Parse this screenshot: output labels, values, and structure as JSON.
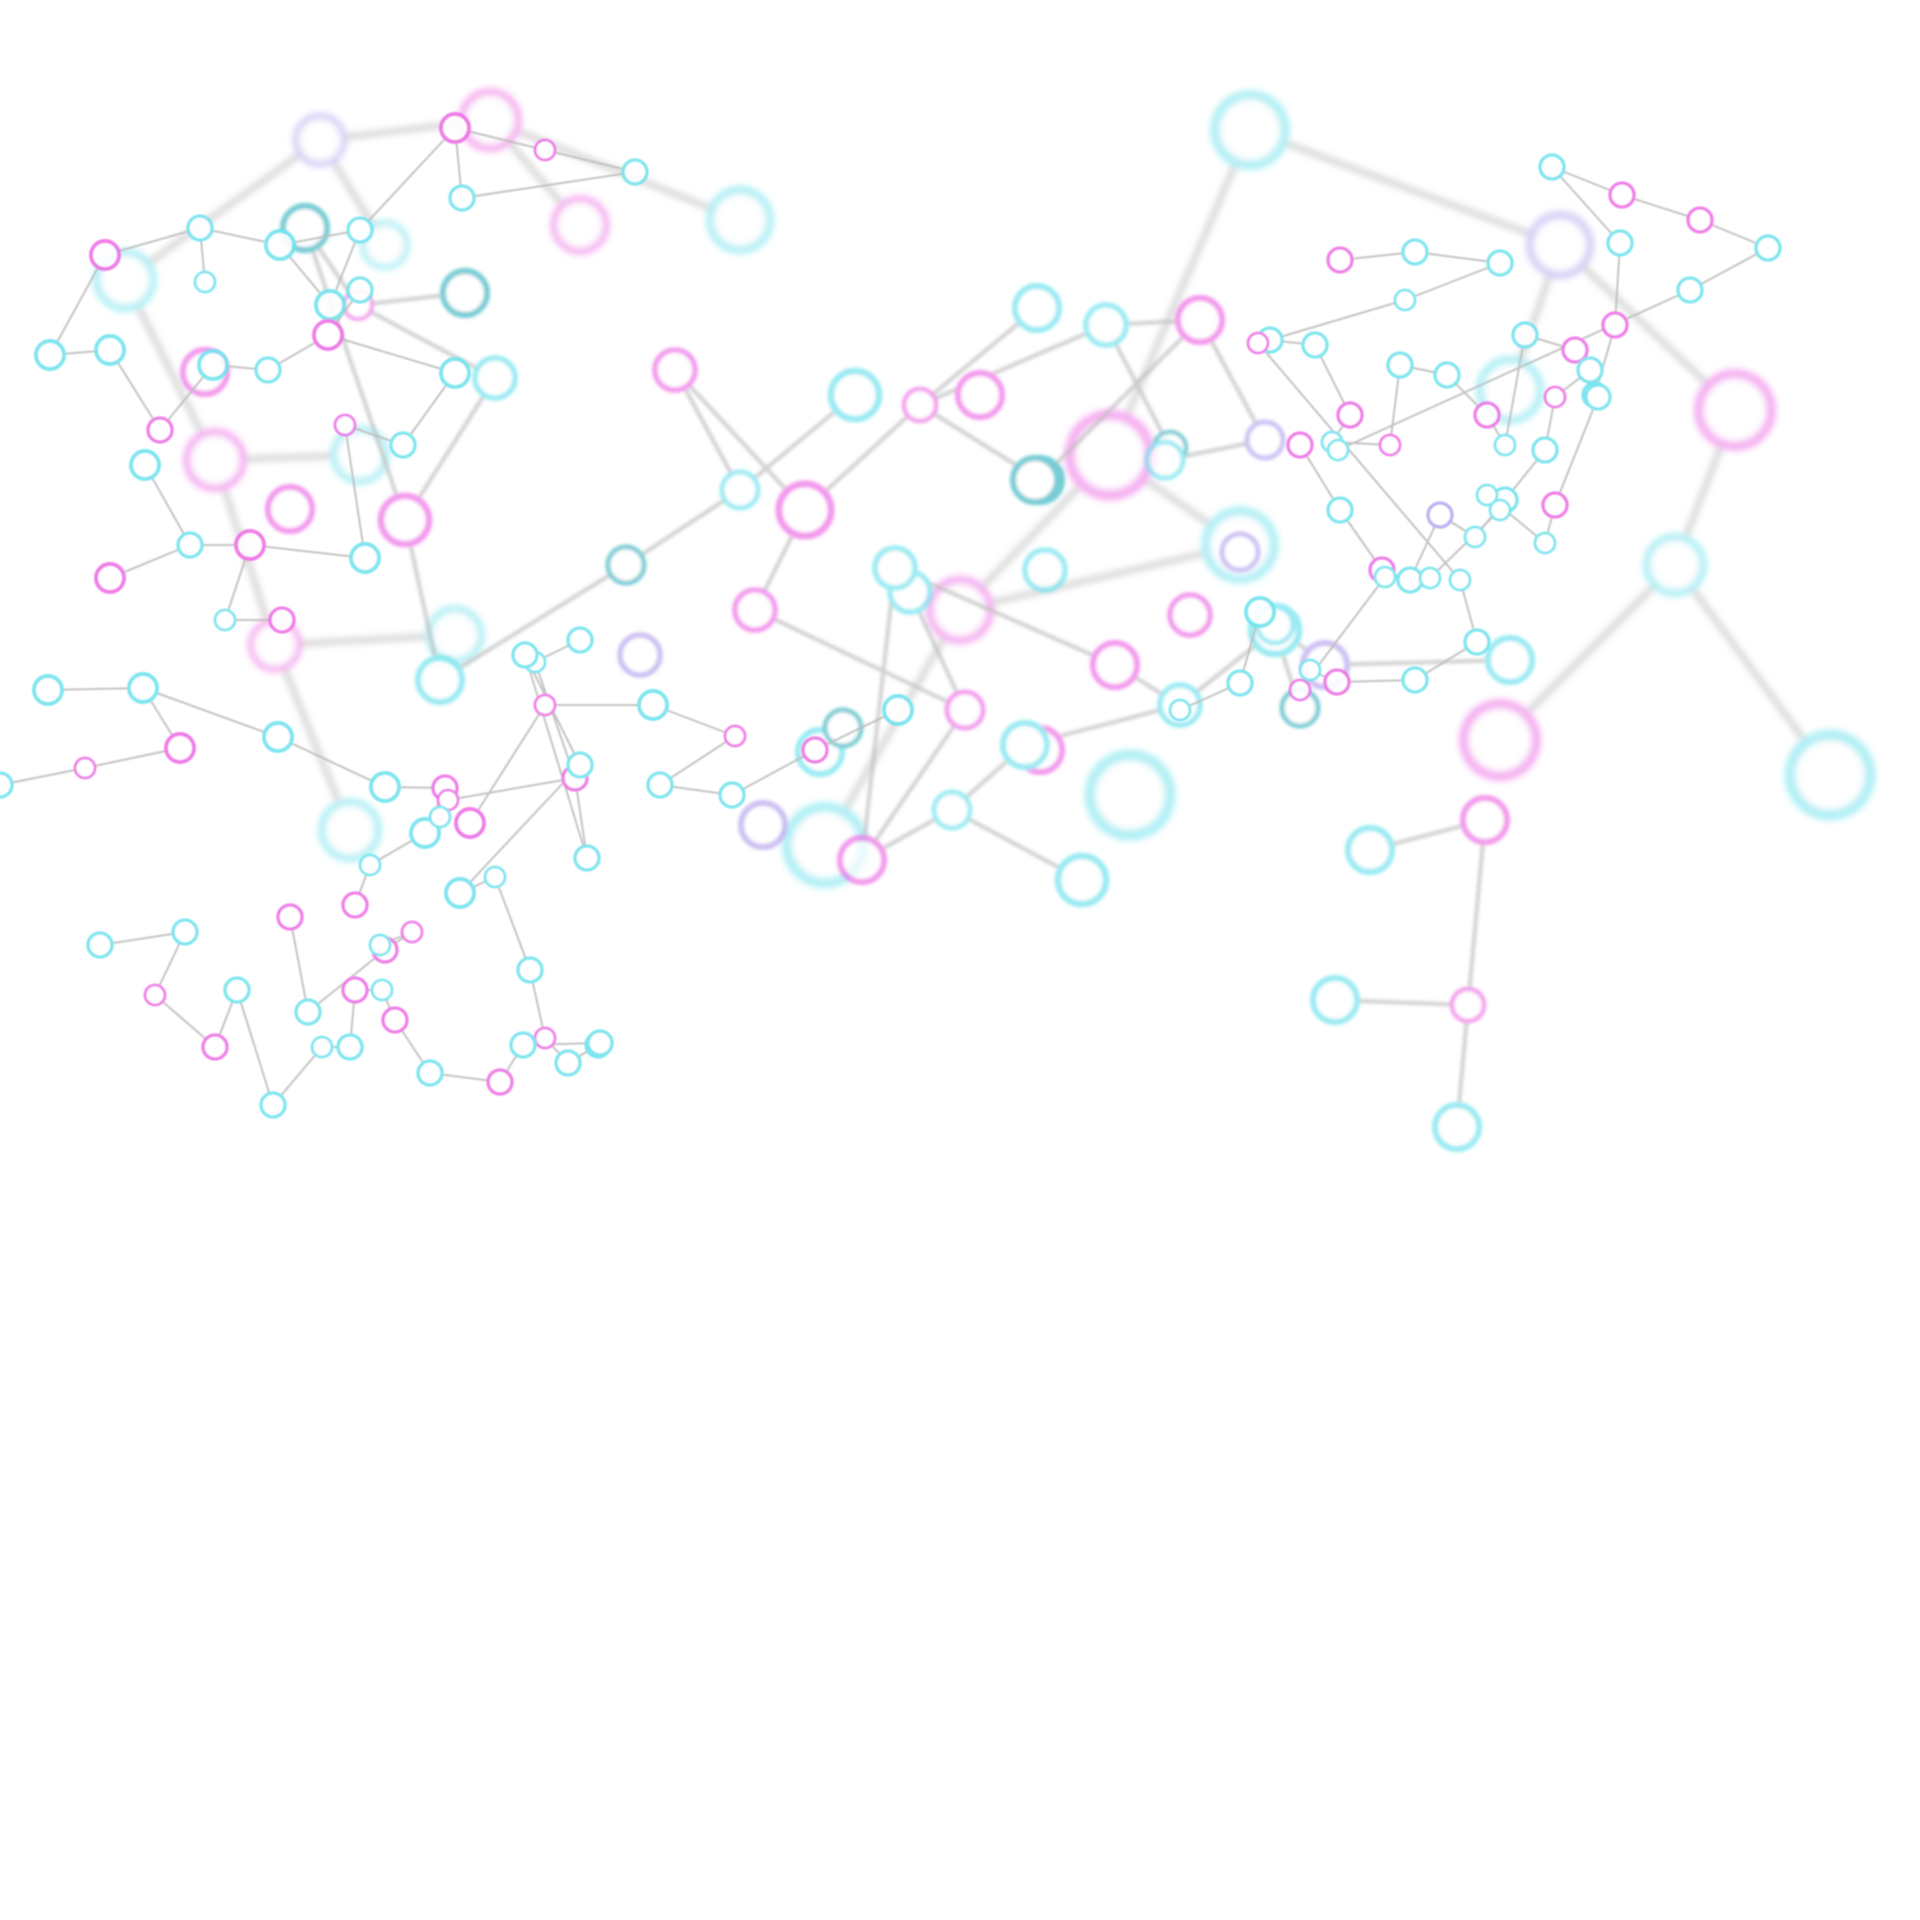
{
  "image": {
    "description_tags": [
      "molecule-network",
      "abstract-background"
    ],
    "background_color": "#ffffff",
    "palette": {
      "cyan": "#6fe3ee",
      "magenta": "#ee6fe6",
      "lavender": "#b9a7ee",
      "teal": "#3fb8c4",
      "bond": "#bdbdbd"
    }
  }
}
